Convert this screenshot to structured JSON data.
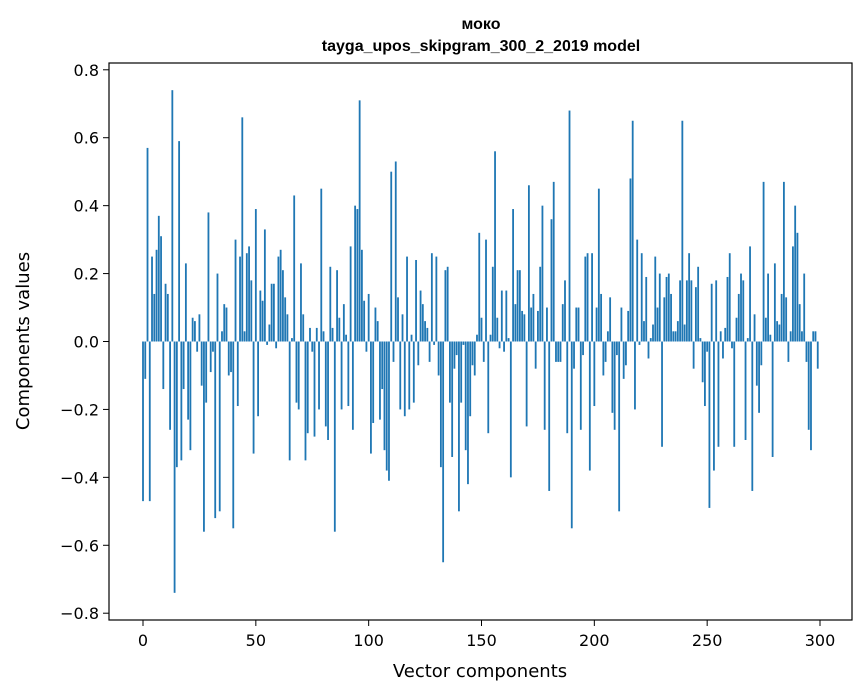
{
  "chart_data": {
    "type": "bar",
    "title": "моко",
    "subtitle": "tayga_upos_skipgram_300_2_2019 model",
    "xlabel": "Vector components",
    "ylabel": "Components values",
    "xlim": [
      -15,
      315
    ],
    "ylim": [
      -0.82,
      0.82
    ],
    "xticks": [
      0,
      50,
      100,
      150,
      200,
      250,
      300
    ],
    "xtick_labels": [
      "0",
      "50",
      "100",
      "150",
      "200",
      "250",
      "300"
    ],
    "yticks": [
      0.8,
      0.6,
      0.4,
      0.2,
      0.0,
      -0.2,
      -0.4,
      -0.6,
      -0.8
    ],
    "ytick_labels": [
      "0.8",
      "0.6",
      "0.4",
      "0.2",
      "0.0",
      "−0.2",
      "−0.4",
      "−0.6",
      "−0.8"
    ],
    "bar_color": "#1f77b4",
    "grid": false,
    "categories_note": "component index 0..299",
    "values": [
      -0.47,
      -0.11,
      0.57,
      -0.47,
      0.25,
      0.14,
      0.27,
      0.37,
      0.31,
      -0.14,
      0.17,
      0.14,
      -0.26,
      0.74,
      -0.74,
      -0.37,
      0.59,
      -0.35,
      -0.14,
      0.23,
      -0.23,
      -0.32,
      0.07,
      0.06,
      -0.03,
      0.08,
      -0.13,
      -0.56,
      -0.18,
      0.38,
      -0.09,
      -0.03,
      -0.52,
      0.2,
      -0.5,
      0.03,
      0.11,
      0.1,
      -0.1,
      -0.09,
      -0.55,
      0.3,
      -0.19,
      0.25,
      0.66,
      0.03,
      0.26,
      0.28,
      0.18,
      -0.33,
      0.39,
      -0.22,
      0.15,
      0.12,
      0.33,
      -0.01,
      0.05,
      0.17,
      0.17,
      -0.02,
      0.25,
      0.27,
      0.21,
      0.13,
      0.08,
      -0.35,
      0.01,
      0.43,
      -0.18,
      -0.2,
      0.23,
      0.08,
      -0.35,
      -0.27,
      0.04,
      -0.03,
      -0.28,
      0.04,
      -0.2,
      0.45,
      0.03,
      -0.25,
      -0.29,
      0.22,
      0.04,
      -0.56,
      0.21,
      0.07,
      -0.2,
      0.11,
      0.02,
      -0.19,
      0.28,
      -0.26,
      0.4,
      0.39,
      0.71,
      0.27,
      0.12,
      -0.03,
      0.14,
      -0.33,
      -0.24,
      0.1,
      0.06,
      -0.23,
      -0.14,
      -0.32,
      -0.38,
      -0.41,
      0.5,
      -0.06,
      0.53,
      0.13,
      -0.2,
      0.08,
      -0.22,
      0.25,
      -0.2,
      0.02,
      -0.18,
      0.24,
      -0.07,
      0.15,
      0.11,
      0.06,
      0.04,
      -0.06,
      0.26,
      -0.01,
      0.25,
      -0.1,
      -0.37,
      -0.65,
      0.21,
      0.22,
      -0.18,
      -0.34,
      -0.08,
      -0.04,
      -0.5,
      -0.18,
      -0.01,
      -0.32,
      -0.42,
      -0.22,
      -0.07,
      -0.1,
      0.02,
      0.32,
      0.07,
      -0.06,
      0.3,
      -0.27,
      0.02,
      0.22,
      0.56,
      0.07,
      -0.02,
      0.15,
      -0.03,
      0.15,
      0.01,
      -0.4,
      0.39,
      0.11,
      0.21,
      0.21,
      0.09,
      0.08,
      -0.25,
      0.46,
      0.1,
      0.14,
      -0.08,
      0.09,
      0.22,
      0.4,
      -0.26,
      0.1,
      -0.44,
      0.36,
      0.47,
      -0.06,
      -0.06,
      -0.06,
      0.11,
      0.18,
      -0.27,
      0.68,
      -0.55,
      -0.08,
      0.1,
      0.1,
      -0.26,
      -0.04,
      0.25,
      0.26,
      -0.38,
      0.26,
      -0.19,
      0.1,
      0.45,
      0.14,
      -0.1,
      -0.06,
      0.03,
      0.13,
      -0.21,
      -0.26,
      -0.04,
      -0.5,
      0.1,
      -0.11,
      -0.07,
      0.09,
      0.48,
      0.65,
      -0.2,
      0.3,
      -0.01,
      0.26,
      0.06,
      0.19,
      -0.05,
      0.01,
      0.05,
      0.25,
      0.1,
      0.2,
      -0.31,
      0.13,
      0.19,
      0.2,
      0.14,
      0.03,
      0.03,
      0.06,
      0.18,
      0.65,
      0.05,
      0.18,
      0.26,
      0.18,
      -0.08,
      0.16,
      0.22,
      0.01,
      -0.12,
      -0.19,
      -0.03,
      -0.49,
      0.17,
      -0.38,
      0.18,
      -0.31,
      0.03,
      -0.05,
      0.04,
      0.19,
      0.26,
      -0.02,
      -0.31,
      0.07,
      0.14,
      0.2,
      0.18,
      -0.29,
      0.01,
      0.28,
      -0.44,
      0.08,
      -0.13,
      -0.21,
      -0.07,
      0.47,
      0.07,
      0.2,
      0.02,
      -0.34,
      0.23,
      0.06,
      0.05,
      0.14,
      0.47,
      0.13,
      -0.06,
      0.03,
      0.28,
      0.4,
      0.32,
      0.11,
      0.03,
      0.2,
      -0.06,
      -0.26,
      -0.32,
      0.03,
      0.03,
      -0.08
    ]
  }
}
